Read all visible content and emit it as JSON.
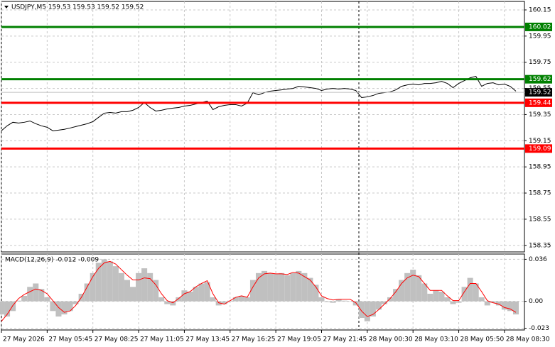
{
  "chart_data": [
    {
      "type": "line",
      "title": "USDJPY,M5  159.53 159.53 159.52 159.52",
      "ylim": [
        158.3,
        160.215
      ],
      "yticks": [
        160.15,
        159.95,
        159.75,
        159.55,
        159.35,
        159.15,
        158.95,
        158.75,
        158.55,
        158.35
      ],
      "grid": true,
      "series": [
        {
          "color": "#000000",
          "values": [
            159.226,
            159.264,
            159.291,
            159.285,
            159.291,
            159.301,
            159.28,
            159.264,
            159.253,
            159.226,
            159.231,
            159.237,
            159.247,
            159.258,
            159.269,
            159.28,
            159.296,
            159.329,
            159.361,
            159.366,
            159.361,
            159.372,
            159.372,
            159.383,
            159.404,
            159.442,
            159.404,
            159.377,
            159.383,
            159.393,
            159.399,
            159.404,
            159.415,
            159.42,
            159.431,
            159.442,
            159.453,
            159.388,
            159.41,
            159.42,
            159.426,
            159.426,
            159.415,
            159.437,
            159.518,
            159.501,
            159.518,
            159.529,
            159.534,
            159.539,
            159.545,
            159.55,
            159.566,
            159.561,
            159.556,
            159.55,
            159.534,
            159.545,
            159.55,
            159.545,
            159.55,
            159.545,
            159.534,
            159.48,
            159.485,
            159.496,
            159.512,
            159.518,
            159.523,
            159.539,
            159.566,
            159.577,
            159.583,
            159.577,
            159.588,
            159.588,
            159.593,
            159.604,
            159.588,
            159.556,
            159.588,
            159.61,
            159.631,
            159.642,
            159.566,
            159.588,
            159.593,
            159.577,
            159.583,
            159.566,
            159.529
          ]
        }
      ],
      "levels": [
        {
          "value": 160.02,
          "color": "#008000"
        },
        {
          "value": 159.62,
          "color": "#008000"
        },
        {
          "value": 159.44,
          "color": "#ff0000"
        },
        {
          "value": 159.09,
          "color": "#ff0000"
        }
      ],
      "last_price": {
        "value": 159.52,
        "color": "#000000"
      }
    },
    {
      "type": "macd",
      "title": "MACD(12,26,9) -0.012 -0.009",
      "ylim": [
        -0.0245,
        0.0405
      ],
      "yticks": [
        0.036,
        {
          "value": 0,
          "label": "0.00"
        },
        -0.023
      ],
      "grid": true,
      "categories": [
        "27 May 2026",
        null,
        null,
        null,
        null,
        null,
        null,
        null,
        "27 May 05:45",
        null,
        null,
        null,
        null,
        null,
        null,
        null,
        "27 May 08:25",
        null,
        null,
        null,
        null,
        null,
        null,
        null,
        "27 May 11:05",
        null,
        null,
        null,
        null,
        null,
        null,
        null,
        "27 May 13:45",
        null,
        null,
        null,
        null,
        null,
        null,
        null,
        "27 May 16:25",
        null,
        null,
        null,
        null,
        null,
        null,
        null,
        "27 May 19:05",
        null,
        null,
        null,
        null,
        null,
        null,
        null,
        "27 May 21:45",
        null,
        null,
        null,
        null,
        null,
        null,
        null,
        "28 May 00:30",
        null,
        null,
        null,
        null,
        null,
        null,
        null,
        "28 May 03:10",
        null,
        null,
        null,
        null,
        null,
        null,
        null,
        "28 May 05:50",
        null,
        null,
        null,
        null,
        null,
        null,
        null,
        "28 May 08:30",
        null,
        null
      ],
      "series": [
        {
          "kind": "histogram",
          "color": "#c0c0c0",
          "values": [
            -0.0112,
            -0.013,
            -0.0083,
            0.0006,
            0.0047,
            0.0124,
            0.0153,
            0.0106,
            0.0035,
            -0.0083,
            -0.013,
            -0.0112,
            -0.0083,
            -0.0024,
            0.0065,
            0.0153,
            0.0242,
            0.033,
            0.036,
            0.0342,
            0.0301,
            0.0242,
            0.0183,
            0.0124,
            0.0242,
            0.0283,
            0.0242,
            0.0183,
            0.0035,
            -0.0024,
            -0.0035,
            0.0035,
            0.0094,
            0.0083,
            0.0124,
            0.0153,
            0.0165,
            0.0035,
            -0.0035,
            -0.0024,
            0.0006,
            0.0035,
            0.0047,
            0.0035,
            0.0183,
            0.0242,
            0.026,
            0.0242,
            0.0236,
            0.0242,
            0.0224,
            0.0242,
            0.026,
            0.0242,
            0.0201,
            0.0142,
            0.0035,
            -0.0006,
            -0.0012,
            0.0018,
            0.0006,
            0,
            -0.0035,
            -0.0142,
            -0.0171,
            -0.013,
            -0.0071,
            -0.0024,
            0.0035,
            0.0106,
            0.0183,
            0.0242,
            0.0271,
            0.0224,
            0.0153,
            0.0065,
            0.0094,
            0.0083,
            0.0035,
            -0.0024,
            -0.0012,
            0.0124,
            0.0201,
            0.0153,
            0.0035,
            -0.0035,
            -0.0012,
            -0.0035,
            -0.0071,
            -0.0083,
            -0.0112
          ]
        },
        {
          "kind": "line",
          "color": "#ff0000",
          "values": [
            -0.0171,
            -0.0112,
            -0.0035,
            0.0024,
            0.0059,
            0.0083,
            0.0106,
            0.0094,
            0.0065,
            0.0006,
            -0.0053,
            -0.0094,
            -0.0083,
            -0.0035,
            0.0035,
            0.0124,
            0.0212,
            0.0283,
            0.033,
            0.0342,
            0.0319,
            0.0271,
            0.0224,
            0.0183,
            0.0183,
            0.0201,
            0.0195,
            0.0142,
            0.0065,
            0.0006,
            -0.0012,
            0.0024,
            0.0065,
            0.0083,
            0.0124,
            0.0153,
            0.0177,
            0.0065,
            -0.0012,
            -0.0024,
            0.0006,
            0.0035,
            0.0047,
            0.0035,
            0.0124,
            0.0201,
            0.0236,
            0.0242,
            0.0236,
            0.0236,
            0.023,
            0.0248,
            0.0242,
            0.0212,
            0.0183,
            0.0124,
            0.0047,
            0.0024,
            0.0012,
            0.0018,
            0.0018,
            0.0018,
            -0.0012,
            -0.0083,
            -0.013,
            -0.0112,
            -0.0071,
            -0.0024,
            0.0024,
            0.0083,
            0.0153,
            0.0201,
            0.0224,
            0.0212,
            0.0153,
            0.0094,
            0.0094,
            0.0094,
            0.0047,
            0.0006,
            0.0006,
            0.0083,
            0.0153,
            0.0153,
            0.0083,
            0.0006,
            -0.0012,
            -0.0024,
            -0.0053,
            -0.0065,
            -0.0094
          ]
        }
      ]
    }
  ]
}
